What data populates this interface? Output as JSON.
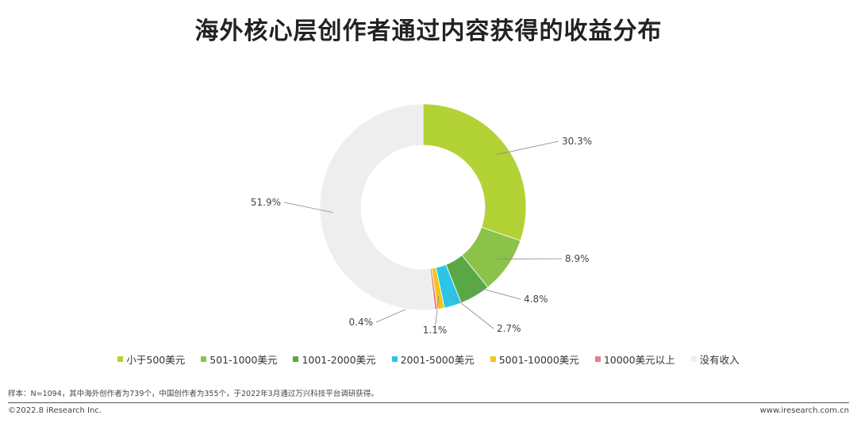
{
  "chart_data": {
    "type": "pie",
    "donut": true,
    "title": "海外核心层创作者通过内容获得的收益分布",
    "legend_position": "bottom",
    "slices": [
      {
        "name": "小于500美元",
        "value": 30.3,
        "label": "30.3%",
        "color": "#b2d235"
      },
      {
        "name": "501-1000美元",
        "value": 8.9,
        "label": "8.9%",
        "color": "#8bc34a"
      },
      {
        "name": "1001-2000美元",
        "value": 4.8,
        "label": "4.8%",
        "color": "#5aa845"
      },
      {
        "name": "2001-5000美元",
        "value": 2.7,
        "label": "2.7%",
        "color": "#29c6ea"
      },
      {
        "name": "5001-10000美元",
        "value": 1.1,
        "label": "1.1%",
        "color": "#f5c518"
      },
      {
        "name": "10000美元以上",
        "value": 0.4,
        "label": "0.4%",
        "color": "#e97b8b"
      },
      {
        "name": "没有收入",
        "value": 51.9,
        "label": "51.9%",
        "color": "#eeeeee"
      }
    ]
  },
  "note": "样本：N=1094，其中海外创作者为739个，中国创作者为355个，于2022年3月通过万兴科技平台调研获得。",
  "footer": {
    "left": "©2022.8 iResearch Inc.",
    "right": "www.iresearch.com.cn"
  }
}
